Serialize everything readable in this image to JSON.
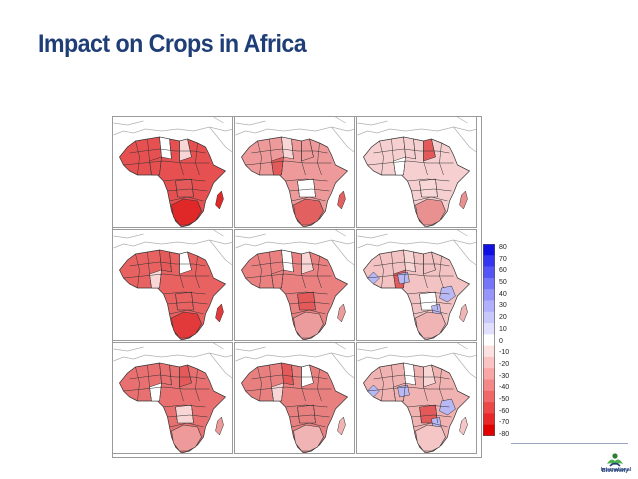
{
  "slide": {
    "title": "Impact on Crops in Africa"
  },
  "map_grid": {
    "rows": 3,
    "cols": 3,
    "panels": [
      {
        "tone": "#e65050",
        "south": "#e02828",
        "var": 0
      },
      {
        "tone": "#ee9a9a",
        "south": "#e26060",
        "var": 1
      },
      {
        "tone": "#f6d0d0",
        "south": "#e99090",
        "var": 2
      },
      {
        "tone": "#e86262",
        "south": "#e23a3a",
        "var": 3
      },
      {
        "tone": "#eb8080",
        "south": "#ec9c9c",
        "var": 4
      },
      {
        "tone": "#f3c2c2",
        "south": "#f0b4b4",
        "var": 5,
        "blue": true
      },
      {
        "tone": "#e87070",
        "south": "#ef9a9a",
        "var": 6
      },
      {
        "tone": "#e98080",
        "south": "#f1b4b4",
        "var": 7
      },
      {
        "tone": "#f1b2b2",
        "south": "#f4c6c6",
        "var": 8,
        "blue": true
      }
    ]
  },
  "colorbar": {
    "ticks": [
      "80",
      "70",
      "60",
      "50",
      "40",
      "30",
      "20",
      "10",
      "0",
      "-10",
      "-20",
      "-30",
      "-40",
      "-50",
      "-60",
      "-70",
      "-80"
    ],
    "colors": [
      "#1010e0",
      "#3535f0",
      "#5555f5",
      "#7575f7",
      "#9595fa",
      "#b0b0fc",
      "#c8c8fd",
      "#e0e0fe",
      "#ffffff",
      "#fde0e0",
      "#fbc4c4",
      "#f8a6a6",
      "#f48888",
      "#f06868",
      "#ec4848",
      "#e82828",
      "#e00000"
    ]
  },
  "logo": {
    "name": "Bioversity",
    "sub": "International"
  }
}
